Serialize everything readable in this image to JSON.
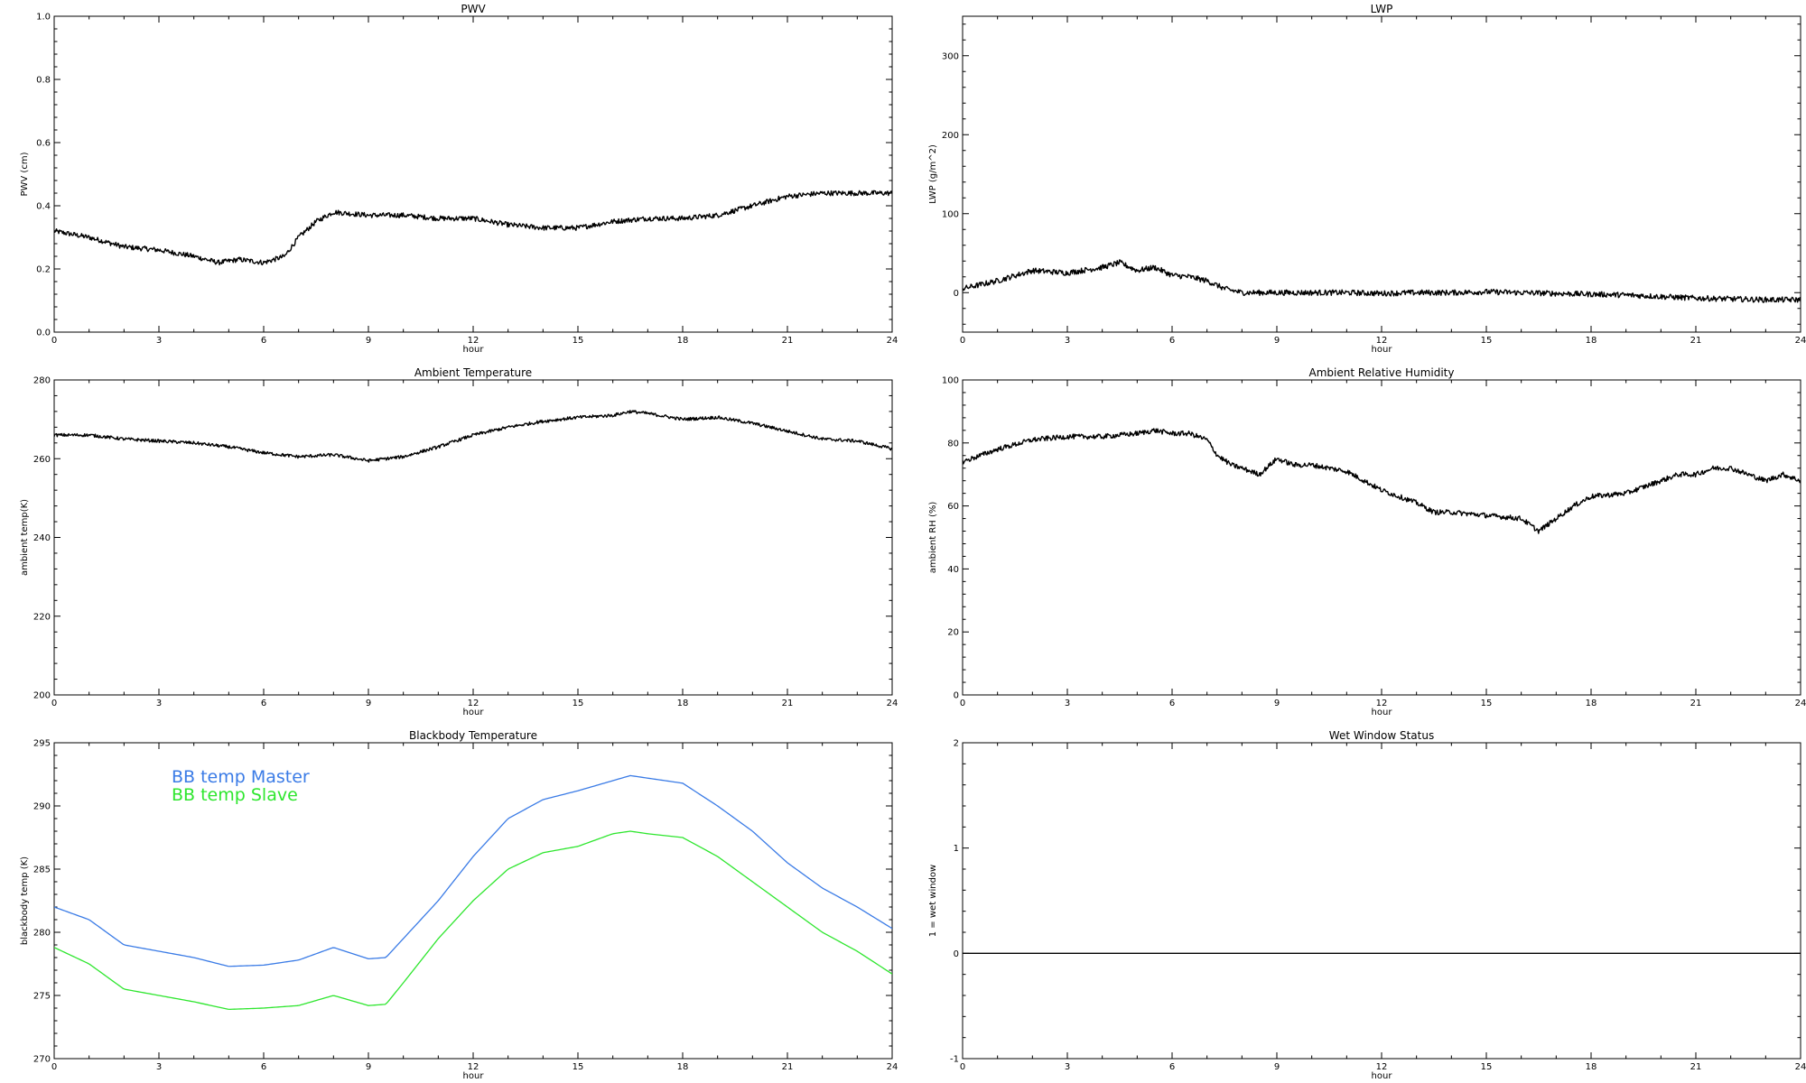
{
  "chart_data": [
    {
      "id": "pwv",
      "type": "line",
      "title": "PWV",
      "xlabel": "hour",
      "ylabel": "PWV (cm)",
      "xlim": [
        0,
        24
      ],
      "ylim": [
        0.0,
        1.0
      ],
      "xticks": [
        0,
        3,
        6,
        9,
        12,
        15,
        18,
        21,
        24
      ],
      "yticks": [
        "0.0",
        "0.2",
        "0.4",
        "0.6",
        "0.8",
        "1.0"
      ],
      "noise": 0.008,
      "series": [
        {
          "color": "#000000",
          "x": [
            0,
            1,
            2,
            3,
            4,
            4.7,
            5.3,
            6,
            6.6,
            7,
            7.5,
            8,
            9,
            10,
            11,
            12,
            12.5,
            13,
            14,
            15,
            16,
            17,
            18,
            19,
            20,
            21,
            22,
            23,
            24
          ],
          "y": [
            0.32,
            0.3,
            0.27,
            0.26,
            0.24,
            0.22,
            0.23,
            0.22,
            0.24,
            0.3,
            0.35,
            0.38,
            0.37,
            0.37,
            0.36,
            0.36,
            0.35,
            0.34,
            0.33,
            0.33,
            0.35,
            0.36,
            0.36,
            0.37,
            0.4,
            0.43,
            0.44,
            0.44,
            0.44
          ]
        }
      ]
    },
    {
      "id": "lwp",
      "type": "line",
      "title": "LWP",
      "xlabel": "hour",
      "ylabel": "LWP (g/m^2)",
      "xlim": [
        0,
        24
      ],
      "ylim": [
        -50,
        350
      ],
      "xticks": [
        0,
        3,
        6,
        9,
        12,
        15,
        18,
        21,
        24
      ],
      "yticks": [
        "0",
        "100",
        "200",
        "300"
      ],
      "noise": 3.5,
      "series": [
        {
          "color": "#000000",
          "x": [
            0,
            1,
            2,
            3,
            4,
            4.5,
            5,
            5.5,
            6,
            6.5,
            7,
            7.5,
            8,
            9,
            10,
            11,
            12,
            13,
            14,
            15,
            16,
            17,
            18,
            19,
            20,
            21,
            22,
            23,
            24
          ],
          "y": [
            5,
            15,
            28,
            25,
            32,
            38,
            28,
            32,
            22,
            20,
            15,
            5,
            0,
            0,
            0,
            0,
            -1,
            0,
            0,
            1,
            0,
            -1,
            -2,
            -3,
            -5,
            -7,
            -8,
            -9,
            -9
          ]
        }
      ]
    },
    {
      "id": "ambient-temperature",
      "type": "line",
      "title": "Ambient Temperature",
      "xlabel": "hour",
      "ylabel": "ambient temp(K)",
      "xlim": [
        0,
        24
      ],
      "ylim": [
        200,
        280
      ],
      "xticks": [
        0,
        3,
        6,
        9,
        12,
        15,
        18,
        21,
        24
      ],
      "yticks": [
        "200",
        "220",
        "240",
        "260",
        "280"
      ],
      "noise": 0.4,
      "series": [
        {
          "color": "#000000",
          "x": [
            0,
            1,
            2,
            3,
            4,
            5,
            6,
            7,
            8,
            9,
            10,
            11,
            12,
            13,
            14,
            15,
            16,
            16.5,
            17,
            18,
            19,
            20,
            21,
            22,
            23,
            24
          ],
          "y": [
            266,
            266,
            265,
            264.5,
            264,
            263,
            261.5,
            260.5,
            261,
            259.5,
            260.5,
            263,
            266,
            268,
            269.5,
            270.5,
            271,
            272,
            271.5,
            270,
            270.5,
            269,
            267,
            265,
            264.5,
            262.5
          ]
        }
      ]
    },
    {
      "id": "ambient-relative-humidity",
      "type": "line",
      "title": "Ambient Relative Humidity",
      "xlabel": "hour",
      "ylabel": "ambient RH (%)",
      "xlim": [
        0,
        24
      ],
      "ylim": [
        0,
        100
      ],
      "xticks": [
        0,
        3,
        6,
        9,
        12,
        15,
        18,
        21,
        24
      ],
      "yticks": [
        "0",
        "20",
        "40",
        "60",
        "80",
        "100"
      ],
      "noise": 0.8,
      "series": [
        {
          "color": "#000000",
          "x": [
            0,
            1,
            2,
            3,
            4,
            5,
            5.5,
            6,
            6.5,
            7,
            7.3,
            7.7,
            8,
            8.5,
            9,
            9.5,
            10,
            11,
            12,
            13,
            13.5,
            14,
            15,
            16,
            16.5,
            17,
            17.5,
            18,
            19,
            20,
            20.5,
            21,
            21.5,
            22,
            23,
            23.5,
            24
          ],
          "y": [
            74,
            78,
            81,
            82,
            82,
            83,
            84,
            83,
            83,
            81,
            76,
            73,
            72,
            70,
            75,
            73,
            73,
            71,
            65,
            61,
            58,
            58,
            57,
            56,
            52,
            56,
            60,
            63,
            64,
            68,
            70,
            70,
            72,
            72,
            68,
            70,
            68
          ]
        }
      ]
    },
    {
      "id": "blackbody-temperature",
      "type": "line",
      "title": "Blackbody Temperature",
      "xlabel": "hour",
      "ylabel": "blackbody temp (K)",
      "xlim": [
        0,
        24
      ],
      "ylim": [
        270,
        295
      ],
      "xticks": [
        0,
        3,
        6,
        9,
        12,
        15,
        18,
        21,
        24
      ],
      "yticks": [
        "270",
        "275",
        "280",
        "285",
        "290",
        "295"
      ],
      "noise": 0,
      "legend": [
        "BB temp Master",
        "BB temp Slave"
      ],
      "series": [
        {
          "name": "BB temp Master",
          "color": "#3a7be6",
          "x": [
            0,
            1,
            2,
            3,
            4,
            5,
            6,
            7,
            8,
            9,
            9.5,
            10,
            11,
            12,
            13,
            14,
            15,
            16,
            16.5,
            17,
            18,
            19,
            20,
            21,
            22,
            23,
            24
          ],
          "y": [
            282,
            281,
            279,
            278.5,
            278,
            277.3,
            277.4,
            277.8,
            278.8,
            277.9,
            278,
            279.5,
            282.5,
            286,
            289,
            290.5,
            291.2,
            292,
            292.4,
            292.2,
            291.8,
            290,
            288,
            285.5,
            283.5,
            282,
            280.3
          ]
        },
        {
          "name": "BB temp Slave",
          "color": "#2ee62e",
          "x": [
            0,
            1,
            2,
            3,
            4,
            5,
            6,
            7,
            8,
            9,
            9.5,
            10,
            11,
            12,
            13,
            14,
            15,
            16,
            16.5,
            17,
            18,
            19,
            20,
            21,
            22,
            23,
            24
          ],
          "y": [
            278.8,
            277.5,
            275.5,
            275,
            274.5,
            273.9,
            274,
            274.2,
            275,
            274.2,
            274.3,
            276,
            279.5,
            282.5,
            285,
            286.3,
            286.8,
            287.8,
            288,
            287.8,
            287.5,
            286,
            284,
            282,
            280,
            278.5,
            276.7
          ]
        }
      ]
    },
    {
      "id": "wet-window-status",
      "type": "line",
      "title": "Wet Window Status",
      "xlabel": "hour",
      "ylabel": "1 = wet window",
      "xlim": [
        0,
        24
      ],
      "ylim": [
        -1,
        2
      ],
      "xticks": [
        0,
        3,
        6,
        9,
        12,
        15,
        18,
        21,
        24
      ],
      "yticks": [
        "-1",
        "0",
        "1",
        "2"
      ],
      "noise": 0,
      "series": [
        {
          "color": "#000000",
          "x": [
            0,
            24
          ],
          "y": [
            0,
            0
          ]
        }
      ]
    }
  ]
}
